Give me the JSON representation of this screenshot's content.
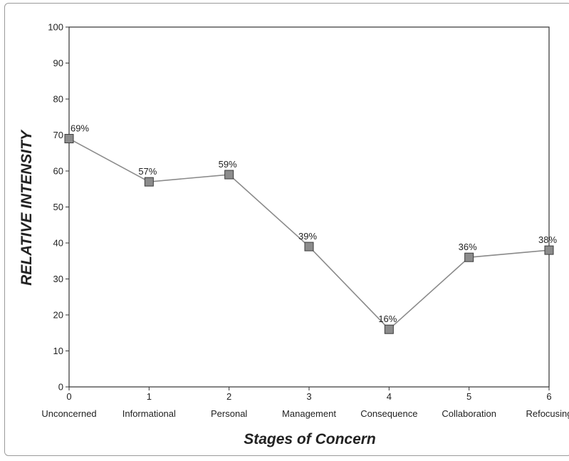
{
  "chart_data": {
    "type": "line",
    "title": "",
    "xlabel": "Stages of Concern",
    "ylabel": "RELATIVE INTENSITY",
    "x": [
      0,
      1,
      2,
      3,
      4,
      5,
      6
    ],
    "categories": [
      "Unconcerned",
      "Informational",
      "Personal",
      "Management",
      "Consequence",
      "Collaboration",
      "Refocusing"
    ],
    "series": [
      {
        "values": [
          69,
          57,
          59,
          39,
          16,
          36,
          38
        ],
        "data_labels": [
          "69%",
          "57%",
          "59%",
          "39%",
          "16%",
          "36%",
          "38%"
        ]
      }
    ],
    "yticks": [
      0,
      10,
      20,
      30,
      40,
      50,
      60,
      70,
      80,
      90,
      100
    ],
    "ylim": [
      0,
      100
    ],
    "xlim": [
      0,
      6
    ],
    "grid": false,
    "colors": {
      "line": "#8a8a8a",
      "marker_fill": "#8c8c8c",
      "marker_stroke": "#3a3a3a",
      "axis": "#333333"
    }
  }
}
